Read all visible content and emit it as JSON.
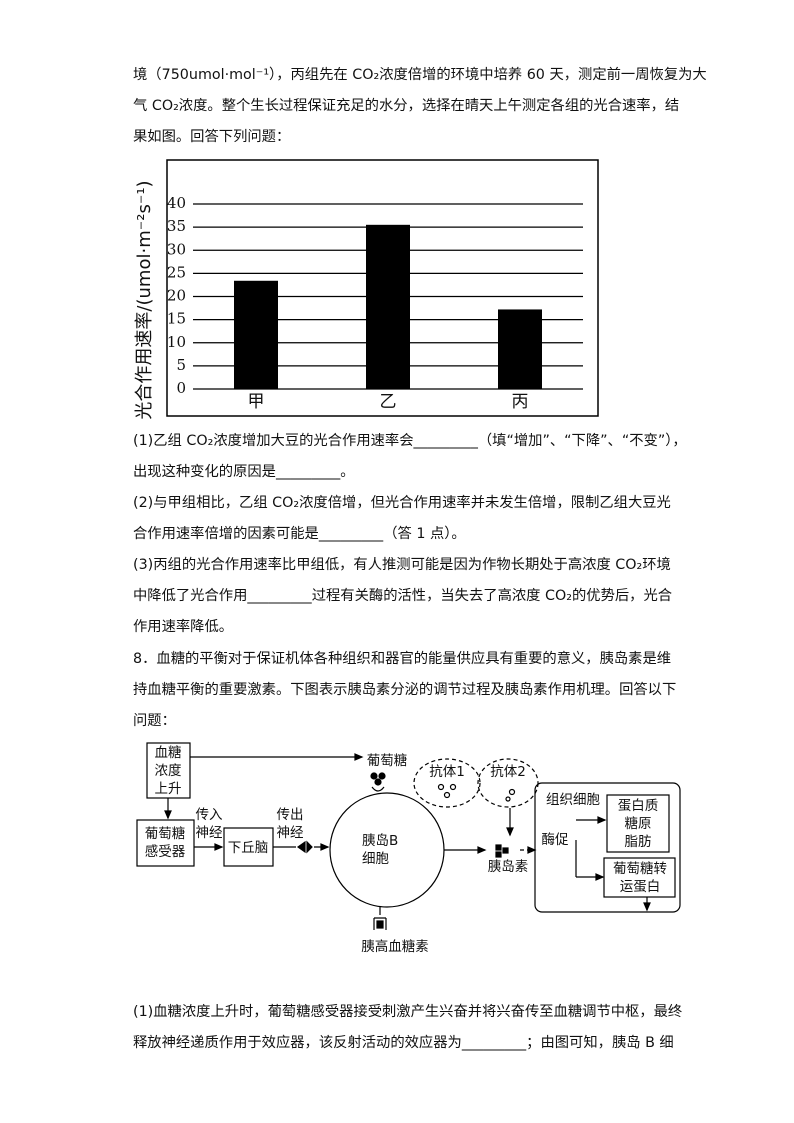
{
  "intro": [
    "境（750umol·mol⁻¹），丙组先在 CO₂浓度倍增的环境中培养 60 天，测定前一周恢复为大",
    "气 CO₂浓度。整个生长过程保证充足的水分，选择在晴天上午测定各组的光合速率，结",
    "果如图。回答下列问题："
  ],
  "chart_data": {
    "type": "bar",
    "y_label": "光合作用速率/(umol·m⁻²s⁻¹)",
    "categories": [
      "甲",
      "乙",
      "丙"
    ],
    "values": [
      23.4,
      35.5,
      17.2
    ],
    "color": "#000000",
    "ylim": [
      0,
      40
    ],
    "yticks": [
      0,
      5,
      10,
      15,
      20,
      25,
      30,
      35,
      40
    ],
    "grid": true
  },
  "questions": [
    "(1)乙组 CO₂浓度增加大豆的光合作用速率会_________（填“增加”、“下降”、“不变”），",
    "出现这种变化的原因是_________。",
    "(2)与甲组相比，乙组 CO₂浓度倍增，但光合作用速率并未发生倍增，限制乙组大豆光",
    "合作用速率倍增的因素可能是_________（答 1 点）。",
    "(3)丙组的光合作用速率比甲组低，有人推测可能是因为作物长期处于高浓度 CO₂环境",
    "中降低了光合作用_________过程有关酶的活性，当失去了高浓度 CO₂的优势后，光合",
    "作用速率降低。"
  ],
  "q8": [
    "8．血糖的平衡对于保证机体各种组织和器官的能量供应具有重要的意义，胰岛素是维",
    "持血糖平衡的重要激素。下图表示胰岛素分泌的调节过程及胰岛素作用机理。回答以下",
    "问题："
  ],
  "diagram": {
    "blood_sugar": [
      "血糖",
      "浓度",
      "上升"
    ],
    "receptor": [
      "葡萄糖",
      "感受器"
    ],
    "afferent": [
      "传入",
      "神经"
    ],
    "hypothalamus": "下丘脑",
    "efferent": [
      "传出",
      "神经"
    ],
    "b_cell": [
      "胰岛B",
      "细胞"
    ],
    "glucose": "葡萄糖",
    "antibody1": "抗体1",
    "antibody2": "抗体2",
    "insulin": "胰岛素",
    "tissue": "组织细胞",
    "promote": "酶促",
    "products": [
      "蛋白质",
      "糖原",
      "脂肪"
    ],
    "transporter": [
      "葡萄糖转",
      "运蛋白"
    ],
    "glucagon": "胰高血糖素"
  },
  "q8_1": [
    "(1)血糖浓度上升时，葡萄糖感受器接受刺激产生兴奋并将兴奋传至血糖调节中枢，最终",
    "释放神经递质作用于效应器，该反射活动的效应器为_________；由图可知，胰岛 B 细"
  ]
}
